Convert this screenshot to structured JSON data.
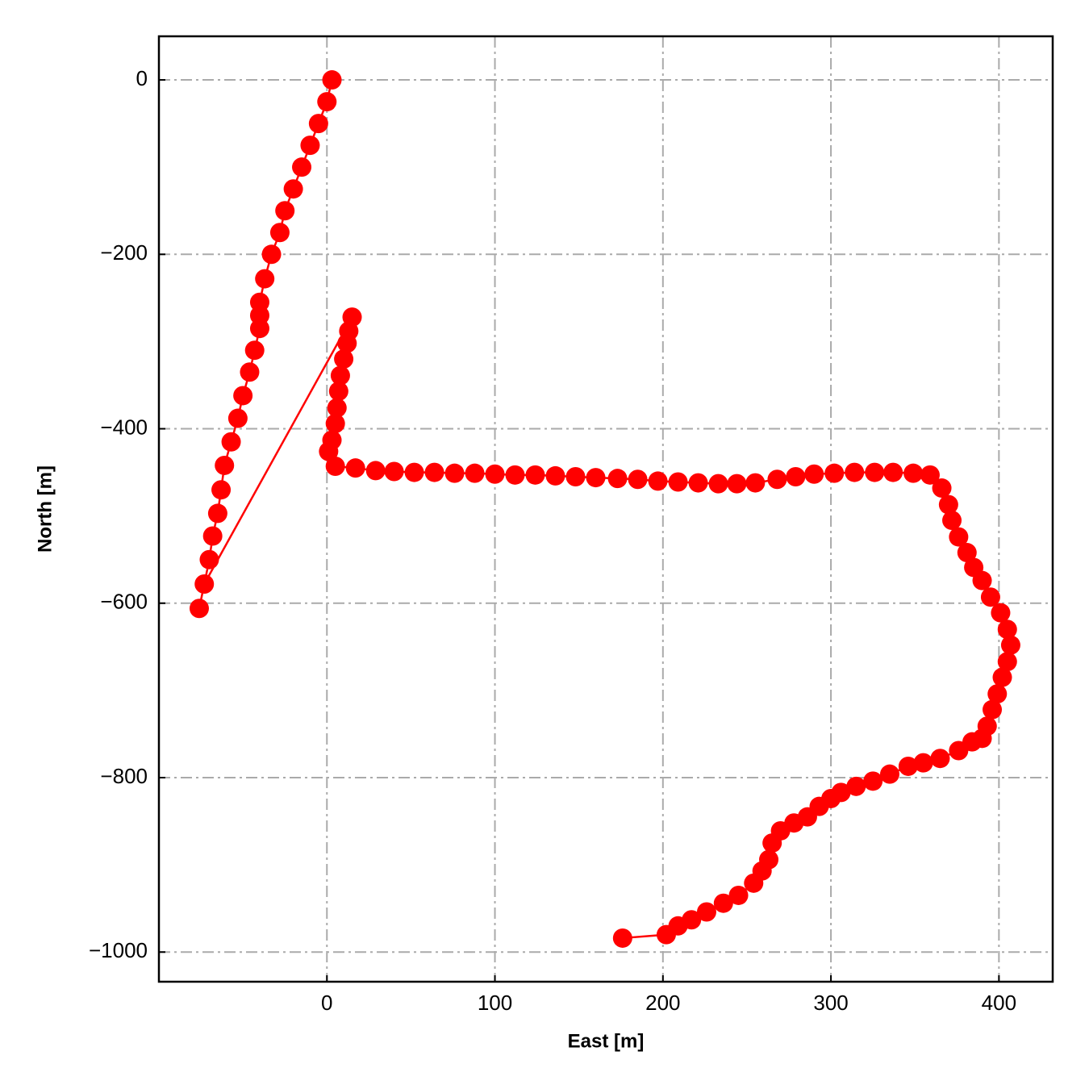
{
  "chart_data": {
    "type": "line",
    "xlabel": "East [m]",
    "ylabel": "North [m]",
    "series": [
      {
        "color": "#ff0000",
        "marker": "o",
        "x": [
          3,
          0,
          -5,
          -10,
          -15,
          -20,
          -25,
          -28,
          -33,
          -37,
          -40,
          -40,
          -40,
          -43,
          -46,
          -50,
          -53,
          -57,
          -61,
          -63,
          -65,
          -68,
          -70,
          -76,
          -73,
          15,
          13,
          12,
          10,
          8,
          7,
          6,
          5,
          3,
          1,
          5,
          17,
          29,
          40,
          52,
          64,
          76,
          88,
          100,
          112,
          124,
          136,
          148,
          160,
          173,
          185,
          197,
          209,
          221,
          233,
          244,
          255,
          268,
          279,
          290,
          302,
          314,
          326,
          337,
          349,
          359,
          366,
          370,
          372,
          376,
          381,
          385,
          390,
          395,
          401,
          405,
          407,
          405,
          402,
          399,
          396,
          393,
          390,
          384,
          376,
          365,
          355,
          346,
          335,
          325,
          315,
          306,
          300,
          293,
          286,
          278,
          270,
          265,
          263,
          259,
          254,
          245,
          236,
          226,
          217,
          209,
          202,
          176
        ],
        "values": [
          0,
          -25,
          -50,
          -75,
          -100,
          -125,
          -150,
          -175,
          -200,
          -228,
          -255,
          -270,
          -285,
          -310,
          -335,
          -362,
          -388,
          -415,
          -442,
          -470,
          -497,
          -523,
          -550,
          -606,
          -578,
          -272,
          -288,
          -302,
          -320,
          -339,
          -357,
          -376,
          -394,
          -413,
          -426,
          -443,
          -445,
          -448,
          -449,
          -450,
          -450,
          -451,
          -451,
          -452,
          -453,
          -453,
          -454,
          -455,
          -456,
          -457,
          -458,
          -460,
          -461,
          -462,
          -463,
          -463,
          -462,
          -458,
          -455,
          -452,
          -451,
          -450,
          -450,
          -450,
          -451,
          -453,
          -468,
          -487,
          -505,
          -524,
          -542,
          -559,
          -574,
          -593,
          -611,
          -630,
          -648,
          -667,
          -685,
          -704,
          -722,
          -741,
          -755,
          -759,
          -769,
          -778,
          -783,
          -787,
          -796,
          -804,
          -810,
          -817,
          -824,
          -833,
          -845,
          -852,
          -861,
          -875,
          -894,
          -907,
          -921,
          -935,
          -944,
          -954,
          -963,
          -970,
          -980,
          -984
        ]
      }
    ],
    "xlim": [
      -100,
      432
    ],
    "ylim": [
      -1034,
      50
    ],
    "xticks": [
      0,
      100,
      200,
      300,
      400
    ],
    "yticks": [
      0,
      {
        "value": -200,
        "label": "−200"
      },
      {
        "value": -400,
        "label": "−400"
      },
      {
        "value": -600,
        "label": "−600"
      },
      {
        "value": -800,
        "label": "−800"
      },
      {
        "value": -1000,
        "label": "−1000"
      }
    ],
    "grid": true
  }
}
